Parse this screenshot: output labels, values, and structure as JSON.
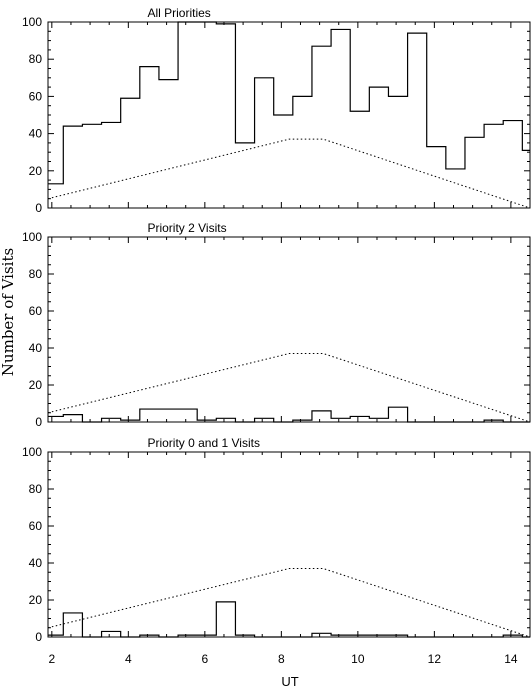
{
  "chart_data": {
    "type": "line",
    "xlabel": "UT",
    "ylabel": "Number of Visits",
    "xlim": [
      1.9,
      14.5
    ],
    "x_ticks": [
      2,
      4,
      6,
      8,
      10,
      12,
      14
    ],
    "bin_edges": [
      1.9,
      2.3,
      2.8,
      3.3,
      3.8,
      4.3,
      4.8,
      5.3,
      5.8,
      6.3,
      6.8,
      7.3,
      7.8,
      8.3,
      8.8,
      9.3,
      9.8,
      10.3,
      10.8,
      11.3,
      11.8,
      12.3,
      12.8,
      13.3,
      13.8,
      14.3,
      14.5
    ],
    "reference_curve": {
      "x": [
        1.9,
        8.2,
        9.1,
        14.5
      ],
      "y": [
        5,
        37,
        37,
        0
      ]
    },
    "panels": [
      {
        "title": "All Priorities",
        "ylim": [
          0,
          100
        ],
        "y_ticks": [
          0,
          20,
          40,
          60,
          80,
          100
        ],
        "values": [
          13,
          44,
          45,
          46,
          59,
          76,
          69,
          100,
          100,
          99,
          35,
          70,
          50,
          60,
          87,
          96,
          52,
          65,
          60,
          94,
          33,
          21,
          38,
          45,
          47,
          31
        ]
      },
      {
        "title": "Priority 2 Visits",
        "ylim": [
          0,
          100
        ],
        "y_ticks": [
          0,
          20,
          40,
          60,
          80,
          100
        ],
        "values": [
          3,
          4,
          0,
          2,
          1,
          7,
          7,
          7,
          1,
          2,
          0,
          2,
          0,
          1,
          6,
          2,
          3,
          2,
          8,
          0,
          0,
          0,
          0,
          1,
          0,
          0
        ]
      },
      {
        "title": "Priority 0 and 1 Visits",
        "ylim": [
          0,
          100
        ],
        "y_ticks": [
          0,
          20,
          40,
          60,
          80,
          100
        ],
        "values": [
          1,
          13,
          0,
          3,
          0,
          1,
          0,
          1,
          1,
          19,
          1,
          0,
          0,
          0,
          2,
          1,
          1,
          1,
          1,
          0,
          0,
          0,
          0,
          0,
          1,
          0
        ]
      }
    ]
  }
}
